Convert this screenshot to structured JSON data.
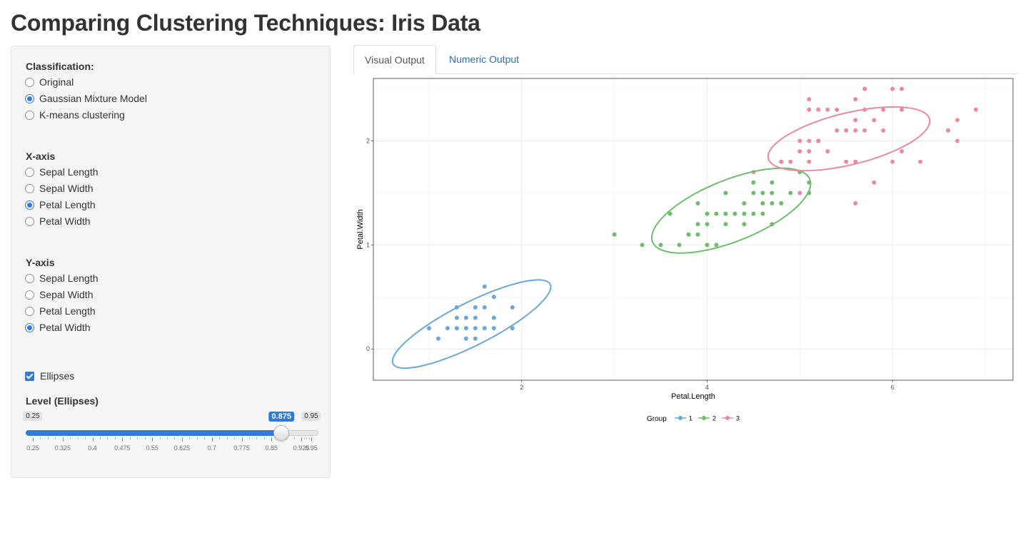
{
  "page": {
    "title": "Comparing Clustering Techniques: Iris Data"
  },
  "sidebar": {
    "classification": {
      "label": "Classification:",
      "options": [
        "Original",
        "Gaussian Mixture Model",
        "K-means clustering"
      ],
      "selected": 1
    },
    "x_axis": {
      "label": "X-axis",
      "options": [
        "Sepal Length",
        "Sepal Width",
        "Petal Length",
        "Petal Width"
      ],
      "selected": 2
    },
    "y_axis": {
      "label": "Y-axis",
      "options": [
        "Sepal Length",
        "Sepal Width",
        "Petal Length",
        "Petal Width"
      ],
      "selected": 3
    },
    "ellipses": {
      "label": "Ellipses",
      "checked": true
    },
    "level": {
      "label": "Level (Ellipses)",
      "min": 0.25,
      "max": 0.95,
      "value": 0.875,
      "min_label": "0.25",
      "max_label": "0.95",
      "value_label": "0.875",
      "tick_labels": [
        "0.25",
        "0.325",
        "0.4",
        "0.475",
        "0.55",
        "0.625",
        "0.7",
        "0.775",
        "0.85",
        "0.925",
        "0.95"
      ]
    }
  },
  "tabs": [
    {
      "label": "Visual Output",
      "active": true
    },
    {
      "label": "Numeric Output",
      "active": false
    }
  ],
  "colors": {
    "accent": "#2f7bd6",
    "link": "#2a6fb0",
    "group1": "#6aa7db",
    "group2": "#6dbd6d",
    "group3": "#ea8aa0"
  },
  "chart_data": {
    "type": "scatter",
    "xlabel": "Petal.Length",
    "ylabel": "Petal.Width",
    "xlim": [
      0.4,
      7.3
    ],
    "ylim": [
      -0.3,
      2.6
    ],
    "x_ticks": [
      2,
      4,
      6
    ],
    "y_ticks": [
      0,
      1,
      2
    ],
    "grid": true,
    "legend": {
      "title": "Group",
      "position": "bottom",
      "entries": [
        "1",
        "2",
        "3"
      ]
    },
    "series": [
      {
        "name": "1",
        "points": [
          [
            1.0,
            0.2
          ],
          [
            1.1,
            0.1
          ],
          [
            1.2,
            0.2
          ],
          [
            1.3,
            0.2
          ],
          [
            1.3,
            0.3
          ],
          [
            1.3,
            0.4
          ],
          [
            1.4,
            0.2
          ],
          [
            1.4,
            0.3
          ],
          [
            1.4,
            0.1
          ],
          [
            1.5,
            0.2
          ],
          [
            1.5,
            0.4
          ],
          [
            1.5,
            0.1
          ],
          [
            1.5,
            0.3
          ],
          [
            1.6,
            0.2
          ],
          [
            1.6,
            0.4
          ],
          [
            1.6,
            0.6
          ],
          [
            1.7,
            0.2
          ],
          [
            1.7,
            0.3
          ],
          [
            1.7,
            0.5
          ],
          [
            1.9,
            0.2
          ],
          [
            1.9,
            0.4
          ]
        ],
        "ellipse": {
          "cx": 1.46,
          "cy": 0.24,
          "rx": 0.93,
          "ry": 0.21,
          "angle_deg": 24
        }
      },
      {
        "name": "2",
        "points": [
          [
            3.0,
            1.1
          ],
          [
            3.3,
            1.0
          ],
          [
            3.5,
            1.0
          ],
          [
            3.6,
            1.3
          ],
          [
            3.7,
            1.0
          ],
          [
            3.8,
            1.1
          ],
          [
            3.9,
            1.1
          ],
          [
            3.9,
            1.2
          ],
          [
            3.9,
            1.4
          ],
          [
            4.0,
            1.0
          ],
          [
            4.0,
            1.2
          ],
          [
            4.0,
            1.3
          ],
          [
            4.1,
            1.0
          ],
          [
            4.1,
            1.3
          ],
          [
            4.2,
            1.2
          ],
          [
            4.2,
            1.3
          ],
          [
            4.2,
            1.5
          ],
          [
            4.3,
            1.3
          ],
          [
            4.4,
            1.2
          ],
          [
            4.4,
            1.3
          ],
          [
            4.4,
            1.4
          ],
          [
            4.5,
            1.3
          ],
          [
            4.5,
            1.5
          ],
          [
            4.5,
            1.6
          ],
          [
            4.6,
            1.3
          ],
          [
            4.6,
            1.4
          ],
          [
            4.6,
            1.5
          ],
          [
            4.7,
            1.2
          ],
          [
            4.7,
            1.4
          ],
          [
            4.7,
            1.5
          ],
          [
            4.7,
            1.6
          ],
          [
            4.8,
            1.4
          ],
          [
            4.8,
            1.8
          ],
          [
            4.9,
            1.5
          ],
          [
            5.0,
            1.7
          ],
          [
            5.1,
            1.5
          ],
          [
            5.1,
            1.6
          ]
        ],
        "ellipse": {
          "cx": 4.26,
          "cy": 1.33,
          "rx": 0.9,
          "ry": 0.3,
          "angle_deg": 19
        }
      },
      {
        "name": "3",
        "points": [
          [
            4.5,
            1.7
          ],
          [
            4.8,
            1.8
          ],
          [
            4.9,
            1.8
          ],
          [
            5.0,
            1.5
          ],
          [
            5.0,
            1.9
          ],
          [
            5.0,
            2.0
          ],
          [
            5.1,
            1.8
          ],
          [
            5.1,
            1.9
          ],
          [
            5.1,
            2.0
          ],
          [
            5.1,
            2.3
          ],
          [
            5.1,
            2.4
          ],
          [
            5.2,
            2.0
          ],
          [
            5.2,
            2.3
          ],
          [
            5.3,
            1.9
          ],
          [
            5.3,
            2.3
          ],
          [
            5.4,
            2.1
          ],
          [
            5.5,
            1.8
          ],
          [
            5.5,
            2.1
          ],
          [
            5.6,
            1.4
          ],
          [
            5.6,
            1.8
          ],
          [
            5.6,
            2.1
          ],
          [
            5.6,
            2.2
          ],
          [
            5.6,
            2.4
          ],
          [
            5.7,
            2.1
          ],
          [
            5.7,
            2.3
          ],
          [
            5.8,
            1.6
          ],
          [
            5.8,
            2.2
          ],
          [
            5.9,
            2.1
          ],
          [
            5.9,
            2.3
          ],
          [
            6.0,
            1.8
          ],
          [
            6.0,
            2.5
          ],
          [
            6.1,
            1.9
          ],
          [
            6.1,
            2.3
          ],
          [
            6.1,
            2.5
          ],
          [
            6.3,
            1.8
          ],
          [
            6.6,
            2.1
          ],
          [
            6.7,
            2.0
          ],
          [
            6.7,
            2.2
          ],
          [
            6.9,
            2.3
          ],
          [
            5.4,
            2.3
          ],
          [
            5.7,
            2.5
          ],
          [
            5.2,
            2.0
          ]
        ],
        "ellipse": {
          "cx": 5.53,
          "cy": 2.02,
          "rx": 0.89,
          "ry": 0.25,
          "angle_deg": 12
        }
      }
    ]
  }
}
